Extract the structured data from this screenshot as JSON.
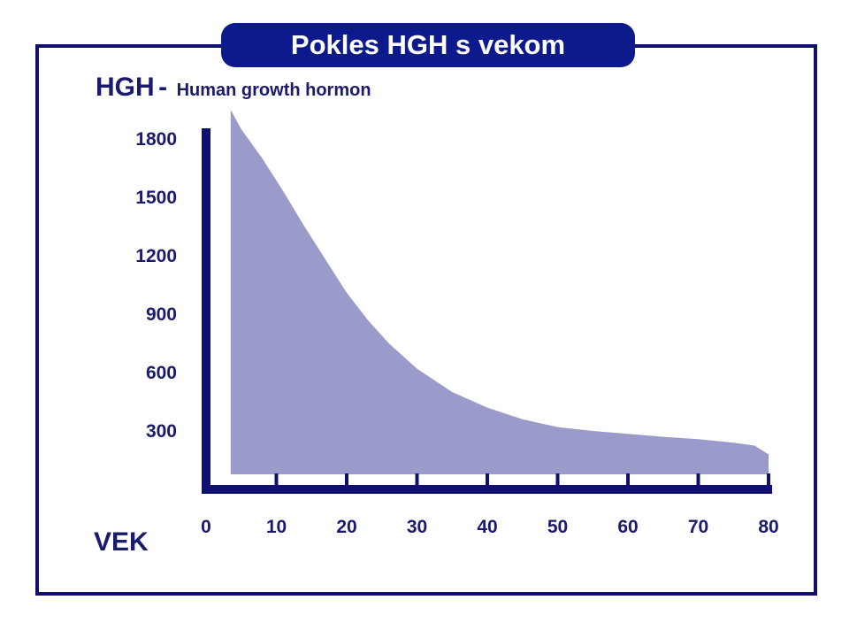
{
  "title": "Pokles HGH s vekom",
  "colors": {
    "axis": "#10106e",
    "title_bg": "#0d1a8c",
    "fill": "#9b9bcb",
    "text": "#1a1a6e"
  },
  "chart_data": {
    "type": "area",
    "title": "Pokles HGH s vekom",
    "ylabel_abbr": "HGH",
    "ylabel_sep": "-",
    "ylabel_full": "Human growth hormon",
    "xlabel": "VEK",
    "x_ticks": [
      "0",
      "10",
      "20",
      "30",
      "40",
      "50",
      "60",
      "70",
      "80"
    ],
    "y_ticks": [
      "300",
      "600",
      "900",
      "1200",
      "1500",
      "1800"
    ],
    "xlim": [
      0,
      80
    ],
    "ylim": [
      0,
      2000
    ],
    "grid": false,
    "series": [
      {
        "x": [
          3.5,
          5,
          8,
          11,
          14,
          17,
          20,
          23,
          26,
          30,
          35,
          40,
          45,
          50,
          55,
          60,
          65,
          70,
          75,
          78,
          80
        ],
        "values": [
          1950,
          1850,
          1700,
          1530,
          1350,
          1180,
          1010,
          870,
          750,
          620,
          500,
          420,
          360,
          320,
          300,
          285,
          270,
          258,
          240,
          225,
          180
        ]
      }
    ]
  }
}
